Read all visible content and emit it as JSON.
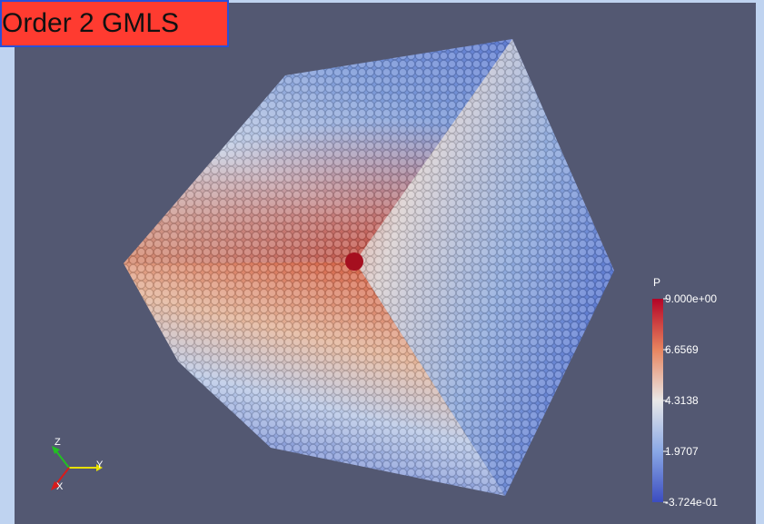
{
  "title": "Order 2 GMLS",
  "colorbar": {
    "variable": "P",
    "ticks": [
      "9.000e+00",
      "6.6569",
      "4.3138",
      "1.9707",
      "-3.724e-01"
    ]
  },
  "orientation_axes": {
    "x": "X",
    "y": "Y",
    "z": "Z"
  },
  "colors": {
    "background": "#535872",
    "frame": "#bfd3f0",
    "title_bg": "#ff3b30",
    "high": "#b40426",
    "mid": "#dddddd",
    "low": "#3b4cc0"
  }
}
